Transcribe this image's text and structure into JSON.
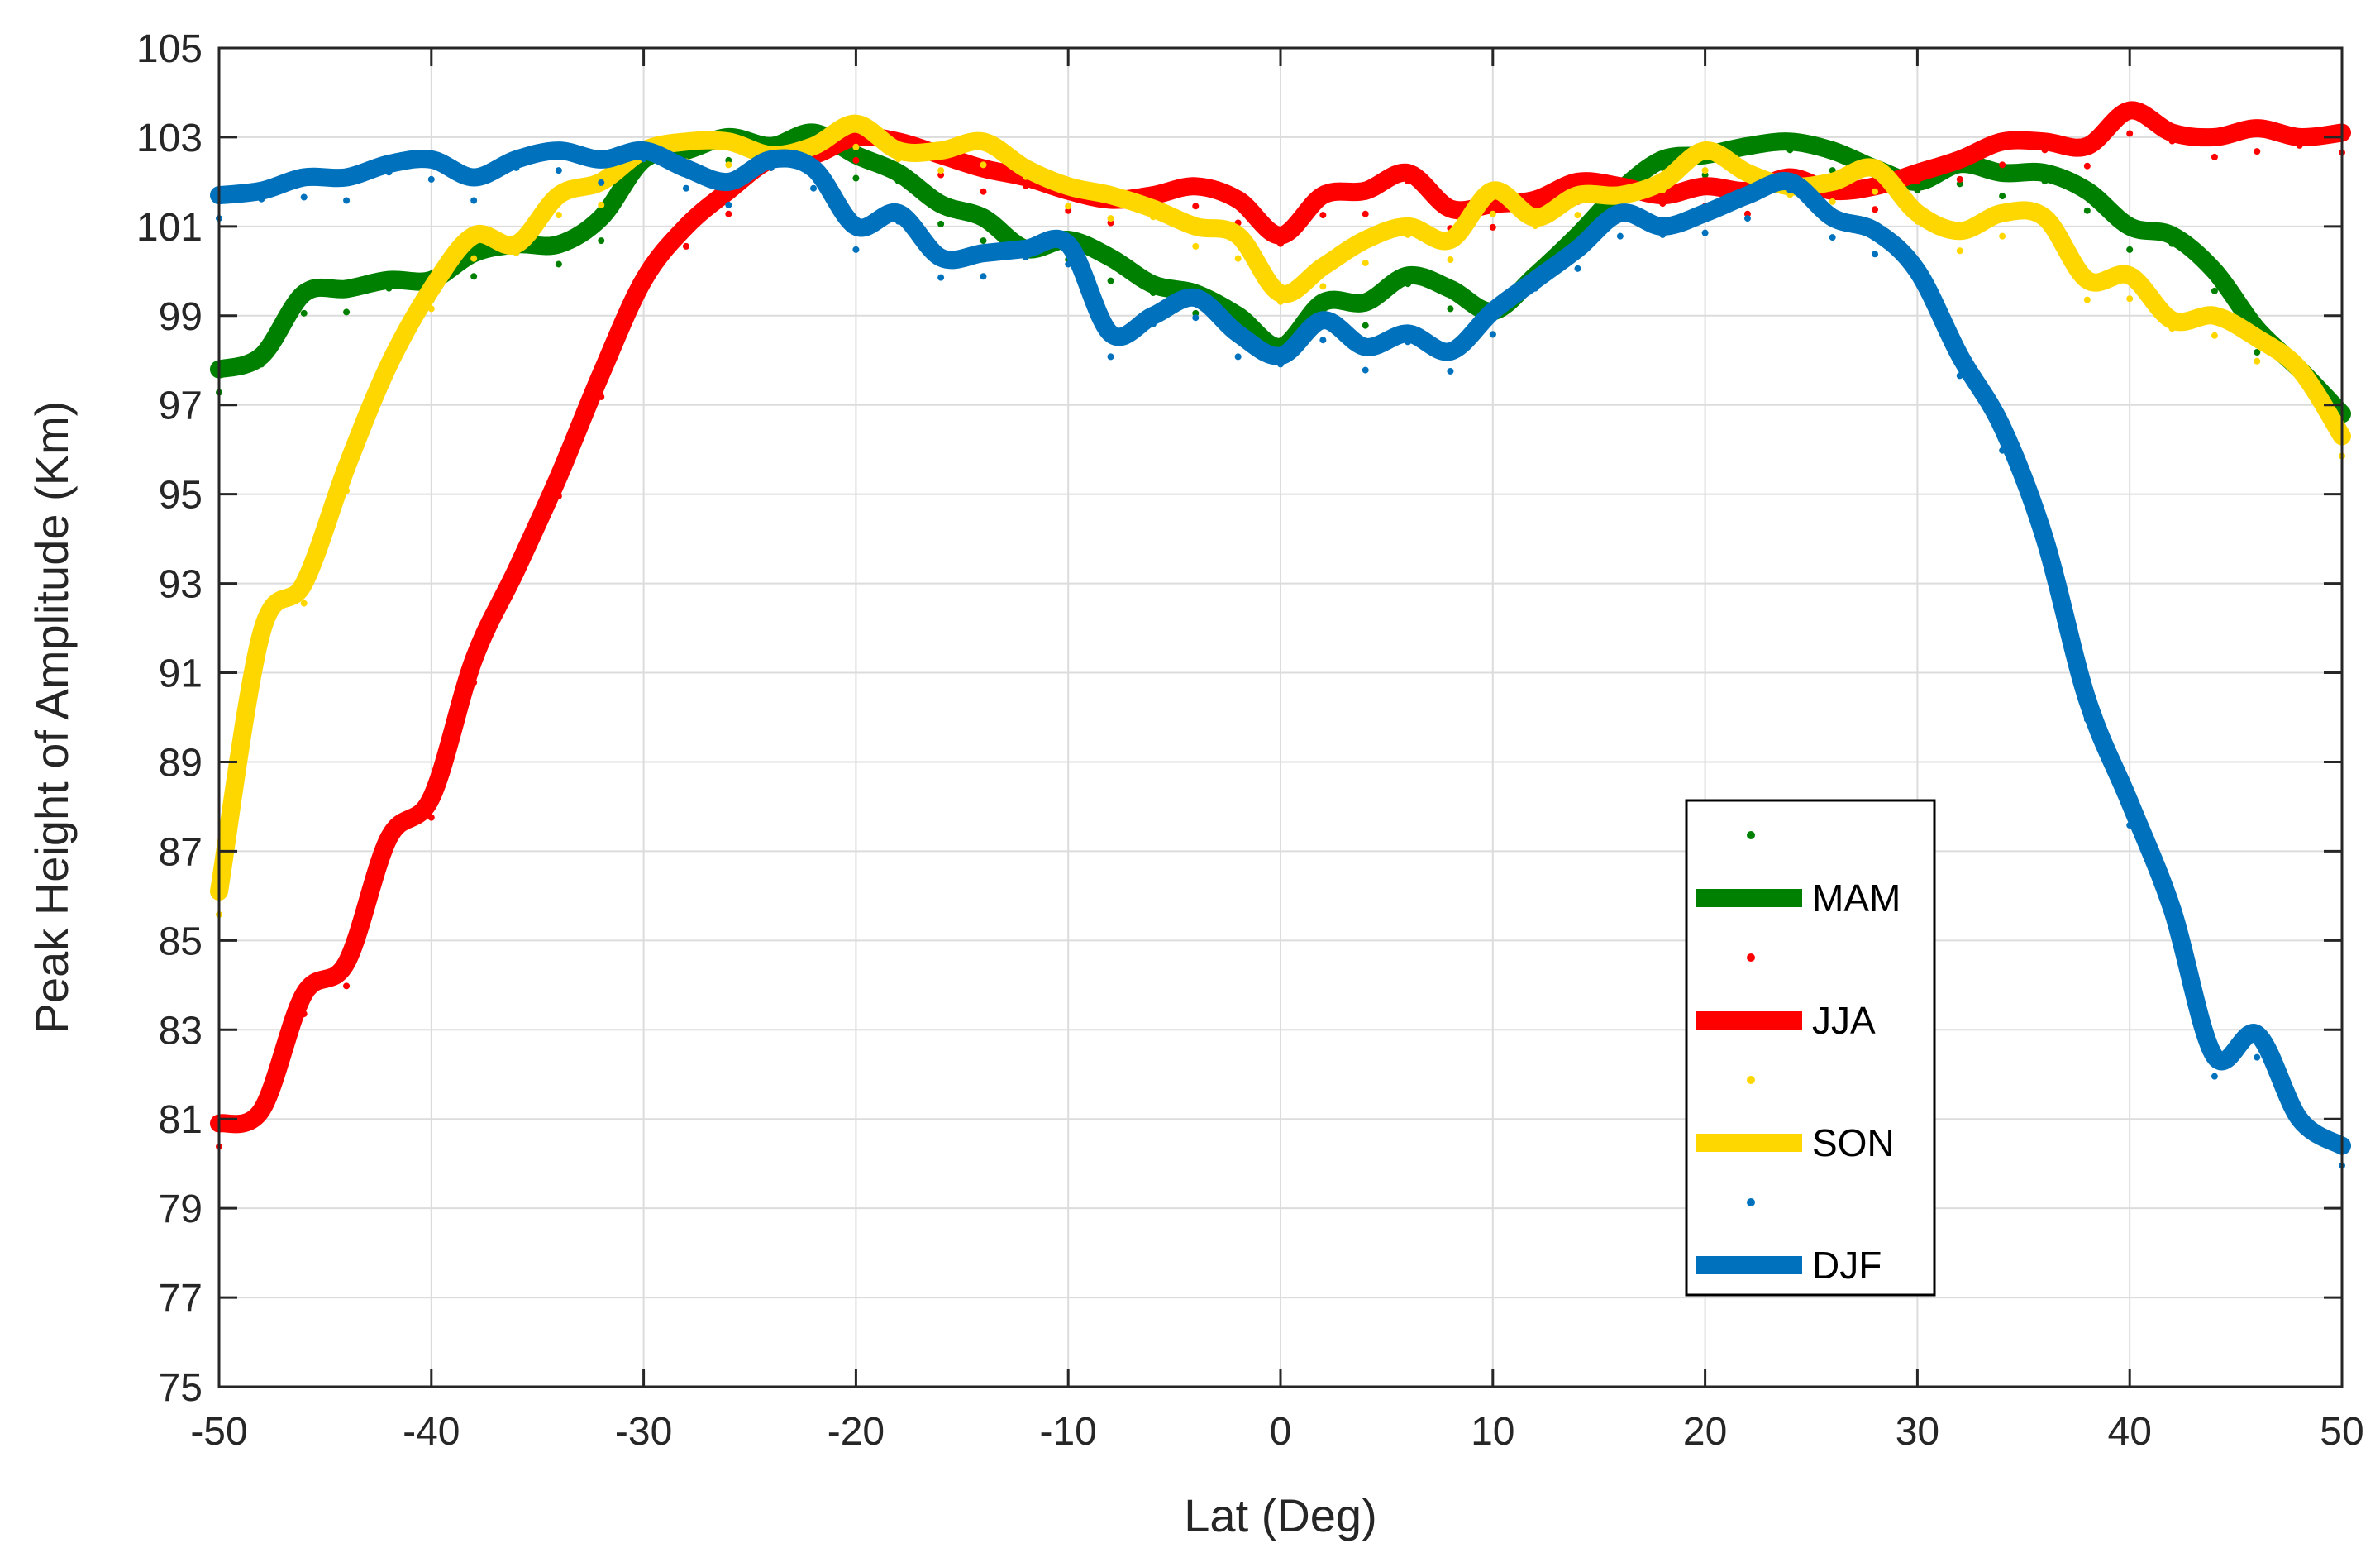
{
  "chart_data": {
    "type": "line",
    "title": "",
    "xlabel": "Lat (Deg)",
    "ylabel": "Peak Height of Amplitude (Km)",
    "xlim": [
      -50,
      50
    ],
    "ylim": [
      75,
      105
    ],
    "xticks": [
      -50,
      -40,
      -30,
      -20,
      -10,
      0,
      10,
      20,
      30,
      40,
      50
    ],
    "yticks": [
      75,
      77,
      79,
      81,
      83,
      85,
      87,
      89,
      91,
      93,
      95,
      97,
      99,
      101,
      103,
      105
    ],
    "grid": true,
    "legend_position": "lower-right",
    "x": [
      -50,
      -48,
      -46,
      -44,
      -42,
      -40,
      -38,
      -36,
      -34,
      -32,
      -30,
      -28,
      -26,
      -24,
      -22,
      -20,
      -18,
      -16,
      -14,
      -12,
      -10,
      -8,
      -6,
      -4,
      -2,
      0,
      2,
      4,
      6,
      8,
      10,
      12,
      14,
      16,
      18,
      20,
      22,
      24,
      26,
      28,
      30,
      32,
      34,
      36,
      38,
      40,
      42,
      44,
      46,
      48,
      50
    ],
    "series": [
      {
        "name": "MAM",
        "color": "#008000",
        "values": [
          97.8,
          98.1,
          99.5,
          99.6,
          99.8,
          99.8,
          100.4,
          100.6,
          100.6,
          101.2,
          102.5,
          102.7,
          103.0,
          102.8,
          103.1,
          102.6,
          102.2,
          101.5,
          101.2,
          100.5,
          100.7,
          100.3,
          99.7,
          99.5,
          99.0,
          98.3,
          99.3,
          99.3,
          99.9,
          99.6,
          99.1,
          99.9,
          100.8,
          101.8,
          102.5,
          102.6,
          102.8,
          102.9,
          102.7,
          102.3,
          102.0,
          102.4,
          102.2,
          102.2,
          101.8,
          101.0,
          100.8,
          100.0,
          98.7,
          97.8,
          96.8
        ]
      },
      {
        "name": "JJA",
        "color": "#ff0000",
        "values": [
          80.9,
          81.2,
          83.8,
          84.5,
          87.3,
          88.2,
          91.3,
          93.3,
          95.4,
          97.7,
          99.8,
          101.0,
          101.8,
          102.5,
          102.6,
          103.0,
          102.9,
          102.6,
          102.3,
          102.1,
          101.8,
          101.6,
          101.7,
          101.9,
          101.6,
          100.8,
          101.7,
          101.8,
          102.2,
          101.4,
          101.5,
          101.6,
          102.0,
          101.9,
          101.7,
          101.9,
          101.8,
          102.1,
          101.8,
          101.9,
          102.2,
          102.5,
          102.9,
          102.9,
          102.8,
          103.6,
          103.1,
          103.0,
          103.2,
          103.0,
          103.1
        ]
      },
      {
        "name": "SON",
        "color": "#ffd700",
        "values": [
          86.1,
          91.9,
          93.0,
          95.6,
          97.9,
          99.6,
          100.8,
          100.6,
          101.7,
          102.0,
          102.7,
          102.9,
          102.9,
          102.6,
          102.8,
          103.3,
          102.7,
          102.7,
          102.9,
          102.3,
          101.9,
          101.7,
          101.4,
          101.0,
          100.8,
          99.5,
          100.1,
          100.7,
          101.0,
          100.7,
          101.8,
          101.2,
          101.7,
          101.7,
          102.0,
          102.7,
          102.2,
          101.9,
          102.0,
          102.3,
          101.3,
          100.9,
          101.3,
          101.2,
          99.8,
          99.9,
          98.9,
          99.0,
          98.5,
          97.8,
          96.3
        ]
      },
      {
        "name": "DJF",
        "color": "#0072bd",
        "values": [
          101.7,
          101.8,
          102.1,
          102.1,
          102.4,
          102.5,
          102.1,
          102.5,
          102.7,
          102.5,
          102.7,
          102.3,
          102.0,
          102.5,
          102.3,
          101.0,
          101.3,
          100.3,
          100.4,
          100.5,
          100.6,
          98.6,
          99.0,
          99.4,
          98.6,
          98.1,
          98.9,
          98.3,
          98.6,
          98.2,
          99.1,
          99.8,
          100.5,
          101.3,
          101.0,
          101.3,
          101.7,
          102.0,
          101.2,
          100.9,
          100.0,
          98.1,
          96.5,
          94.0,
          90.4,
          88.1,
          85.7,
          82.4,
          82.9,
          81.0,
          80.4
        ]
      }
    ]
  }
}
